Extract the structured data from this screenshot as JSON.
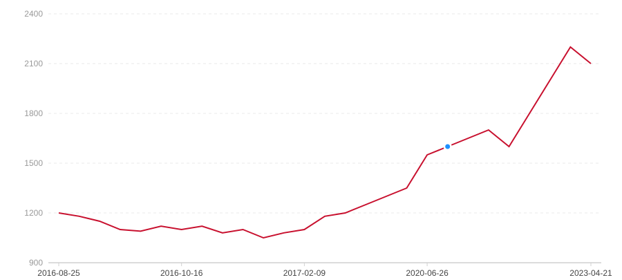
{
  "chart_data": {
    "type": "line",
    "title": "",
    "xlabel": "",
    "ylabel": "",
    "ylim": [
      900,
      2400
    ],
    "yticks": [
      900,
      1200,
      1500,
      1800,
      2100,
      2400
    ],
    "grid": "horizontal dashed",
    "x_tick_labels": [
      {
        "index": 0,
        "label": "2016-08-25"
      },
      {
        "index": 6,
        "label": "2016-10-16"
      },
      {
        "index": 12,
        "label": "2017-02-09"
      },
      {
        "index": 18,
        "label": "2020-06-26"
      },
      {
        "index": 26,
        "label": "2023-04-21"
      }
    ],
    "values": [
      1200,
      1180,
      1150,
      1100,
      1090,
      1120,
      1100,
      1120,
      1080,
      1100,
      1050,
      1080,
      1100,
      1180,
      1200,
      1250,
      1300,
      1350,
      1550,
      1600,
      1650,
      1700,
      1600,
      1800,
      2000,
      2200,
      2100
    ],
    "highlighted_index": 19,
    "colors": {
      "line": "#c8102e",
      "highlight": "#1e90ff",
      "grid": "#e8e8e8",
      "axis": "#d0d0d0",
      "label": "#999999",
      "xlabel": "#444444"
    }
  }
}
